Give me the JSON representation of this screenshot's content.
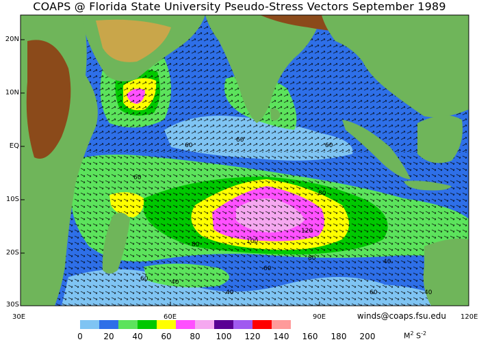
{
  "title": "COAPS @ Florida State University Pseudo-Stress Vectors  September 1989",
  "latitude_labels": [
    "20N",
    "10N",
    "EQ",
    "10S",
    "20S",
    "30S"
  ],
  "longitude_labels": [
    "30E",
    "60E",
    "90E",
    "120E"
  ],
  "credit": "winds@coaps.fsu.edu",
  "colorbar": {
    "ticks": [
      "0",
      "20",
      "40",
      "60",
      "80",
      "100",
      "120",
      "140",
      "160",
      "180",
      "200"
    ],
    "colors": [
      "#7fc4f3",
      "#2e6fe8",
      "#5ce35c",
      "#00c800",
      "#ffff00",
      "#ff50ff",
      "#f5a8f0",
      "#5a0094",
      "#a05af0",
      "#ff0000",
      "#ff9a9a"
    ],
    "units": "M",
    "units_exp": "2",
    "units_s": "S",
    "units_s_exp": "-2"
  },
  "contour_labels": [
    "60",
    "60",
    "60",
    "80",
    "80",
    "100",
    "120",
    "60",
    "40",
    "60",
    "80",
    "60",
    "40",
    "60",
    "40",
    "40"
  ],
  "map_colors": {
    "ocean_low": "#7fc4f3",
    "ocean_mid": "#2e6fe8",
    "green_light": "#5ce35c",
    "green_dark": "#00c800",
    "yellow": "#ffff00",
    "magenta": "#ff50ff",
    "pink": "#f5a8f0",
    "land_green": "#6fb55a",
    "land_brown": "#8b4a1a",
    "coast_gray": "#bdbdbd"
  }
}
